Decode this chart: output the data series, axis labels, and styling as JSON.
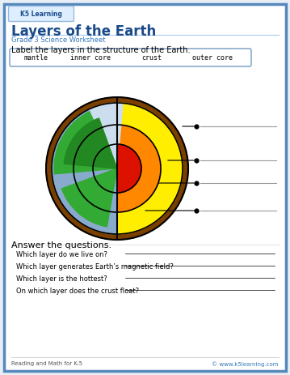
{
  "title": "Layers of the Earth",
  "subtitle": "Grade 3 Science Worksheet",
  "label_instruction": "Label the layers in the structure of the Earth.",
  "word_bank": [
    "mantle",
    "inner core",
    "crust",
    "outer core"
  ],
  "questions_header": "Answer the questions.",
  "questions": [
    "Which layer do we live on?",
    "Which layer generates Earth’s magnetic field?",
    "Which layer is the hottest?",
    "On which layer does the crust float?"
  ],
  "footer_left": "Reading and Math for K-5",
  "footer_right": "© www.k5learning.com",
  "bg_color": "#e8eef5",
  "page_bg": "#ffffff",
  "border_color": "#5588bb",
  "title_color": "#1a4a8a",
  "subtitle_color": "#3377bb",
  "word_bank_border": "#88aacc",
  "layers": {
    "crust_color": "#7B3F00",
    "mantle_yellow": "#FFEE00",
    "outer_core_orange": "#FF8800",
    "inner_core_red": "#DD1100",
    "earth_blue": "#88AACC",
    "earth_blue_light": "#aaccee",
    "earth_green": "#33AA33",
    "earth_green2": "#228822"
  }
}
